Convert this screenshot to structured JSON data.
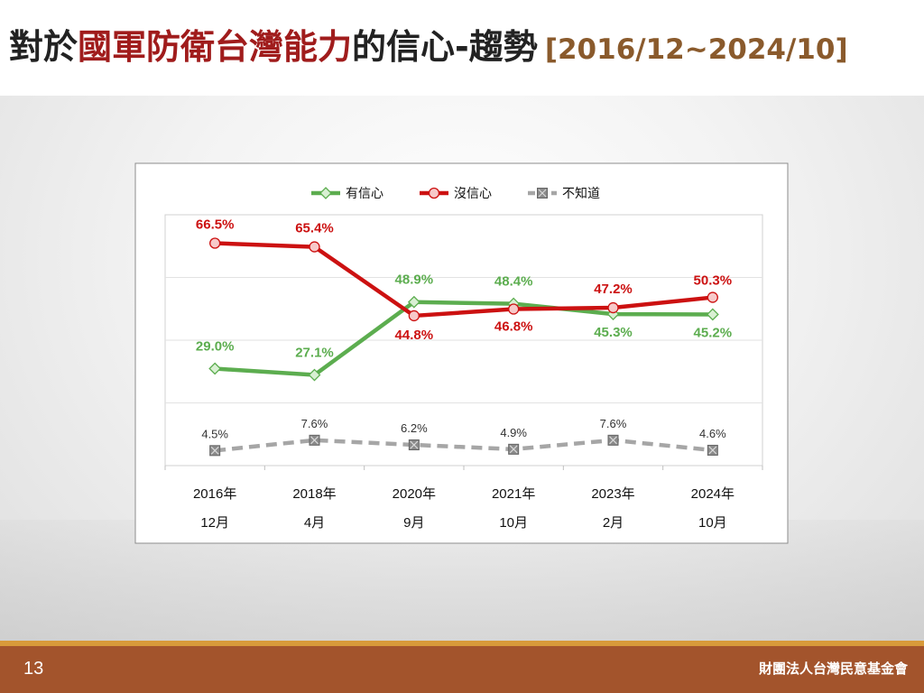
{
  "slide": {
    "title_part1": "對於",
    "title_highlight": "國軍防衛台灣能力",
    "title_part2": "的信心-趨勢",
    "title_range": "[2016/12~2024/10]",
    "page_number": "13",
    "organization": "財團法人台灣民意基金會"
  },
  "colors": {
    "confident": "#5cad4f",
    "not_confident": "#cc1111",
    "dont_know": "#a6a6a6",
    "title_accent": "#a01c1c",
    "footer": "#a3542c"
  },
  "chart_data": {
    "type": "line",
    "x": [
      "2016年 12月",
      "2018年 4月",
      "2020年 9月",
      "2021年 10月",
      "2023年 2月",
      "2024年 10月"
    ],
    "x_lines": [
      [
        "2016年",
        "12月"
      ],
      [
        "2018年",
        "4月"
      ],
      [
        "2020年",
        "9月"
      ],
      [
        "2021年",
        "10月"
      ],
      [
        "2023年",
        "2月"
      ],
      [
        "2024年",
        "10月"
      ]
    ],
    "series": [
      {
        "name": "有信心",
        "values": [
          29.0,
          27.1,
          48.9,
          48.4,
          45.3,
          45.2
        ],
        "labels": [
          "29.0%",
          "27.1%",
          "48.9%",
          "48.4%",
          "45.3%",
          "45.2%"
        ],
        "color": "#5cad4f",
        "marker": "diamond"
      },
      {
        "name": "沒信心",
        "values": [
          66.5,
          65.4,
          44.8,
          46.8,
          47.2,
          50.3
        ],
        "labels": [
          "66.5%",
          "65.4%",
          "44.8%",
          "46.8%",
          "47.2%",
          "50.3%"
        ],
        "color": "#cc1111",
        "marker": "circle"
      },
      {
        "name": "不知道",
        "values": [
          4.5,
          7.6,
          6.2,
          4.9,
          7.6,
          4.6
        ],
        "labels": [
          "4.5%",
          "7.6%",
          "6.2%",
          "4.9%",
          "7.6%",
          "4.6%"
        ],
        "color": "#a6a6a6",
        "marker": "square-x",
        "dashed": true
      }
    ],
    "ylim": [
      0,
      75
    ],
    "grid": true,
    "legend": "top-center"
  }
}
